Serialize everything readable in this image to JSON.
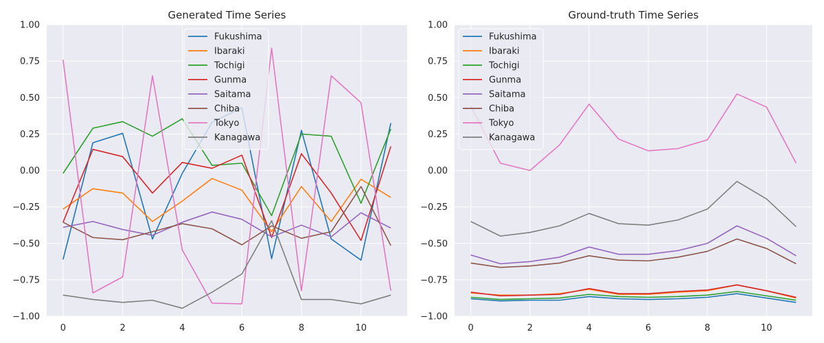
{
  "chart_data": [
    {
      "type": "line",
      "title": "Generated Time Series",
      "xlabel": "",
      "ylabel": "",
      "x": [
        0,
        1,
        2,
        3,
        4,
        5,
        6,
        7,
        8,
        9,
        10,
        11
      ],
      "xticks": [
        "0",
        "2",
        "4",
        "6",
        "8",
        "10"
      ],
      "xlim": [
        -0.55,
        11.55
      ],
      "ylim": [
        -1.0,
        1.0
      ],
      "yticks": [
        "−1.00",
        "−0.75",
        "−0.50",
        "−0.25",
        "0.00",
        "0.25",
        "0.50",
        "0.75",
        "1.00"
      ],
      "grid": true,
      "legend_position": "upper center",
      "series": [
        {
          "name": "Fukushima",
          "color": "#1f77b4",
          "values": [
            -0.61,
            0.19,
            0.255,
            -0.47,
            -0.02,
            0.33,
            0.43,
            -0.605,
            0.275,
            -0.47,
            -0.615,
            0.325
          ]
        },
        {
          "name": "Ibaraki",
          "color": "#ff7f0e",
          "values": [
            -0.265,
            -0.125,
            -0.155,
            -0.35,
            -0.21,
            -0.055,
            -0.135,
            -0.42,
            -0.11,
            -0.35,
            -0.06,
            -0.185
          ]
        },
        {
          "name": "Tochigi",
          "color": "#2ca02c",
          "values": [
            -0.02,
            0.29,
            0.335,
            0.235,
            0.355,
            0.035,
            0.05,
            -0.31,
            0.25,
            0.235,
            -0.225,
            0.285
          ]
        },
        {
          "name": "Gunma",
          "color": "#d62728",
          "values": [
            -0.355,
            0.145,
            0.095,
            -0.155,
            0.055,
            0.015,
            0.105,
            -0.46,
            0.115,
            -0.155,
            -0.48,
            0.165
          ]
        },
        {
          "name": "Saitama",
          "color": "#9467bd",
          "values": [
            -0.39,
            -0.35,
            -0.405,
            -0.445,
            -0.355,
            -0.285,
            -0.335,
            -0.455,
            -0.375,
            -0.455,
            -0.29,
            -0.395
          ]
        },
        {
          "name": "Chiba",
          "color": "#8c564b",
          "values": [
            -0.355,
            -0.46,
            -0.475,
            -0.42,
            -0.365,
            -0.4,
            -0.51,
            -0.38,
            -0.465,
            -0.42,
            -0.11,
            -0.515
          ]
        },
        {
          "name": "Tokyo",
          "color": "#e377c2",
          "values": [
            0.76,
            -0.84,
            -0.73,
            0.65,
            -0.545,
            -0.91,
            -0.915,
            0.84,
            -0.825,
            0.65,
            0.465,
            -0.825
          ]
        },
        {
          "name": "Kanagawa",
          "color": "#7f7f7f",
          "values": [
            -0.855,
            -0.885,
            -0.905,
            -0.89,
            -0.945,
            -0.835,
            -0.71,
            -0.345,
            -0.885,
            -0.885,
            -0.915,
            -0.855
          ]
        }
      ]
    },
    {
      "type": "line",
      "title": "Ground-truth Time Series",
      "xlabel": "",
      "ylabel": "",
      "x": [
        0,
        1,
        2,
        3,
        4,
        5,
        6,
        7,
        8,
        9,
        10,
        11
      ],
      "xticks": [
        "0",
        "2",
        "4",
        "6",
        "8",
        "10"
      ],
      "xlim": [
        -0.55,
        11.55
      ],
      "ylim": [
        -1.0,
        1.0
      ],
      "yticks": [
        "−1.00",
        "−0.75",
        "−0.50",
        "−0.25",
        "0.00",
        "0.25",
        "0.50",
        "0.75",
        "1.00"
      ],
      "grid": true,
      "legend_position": "upper left",
      "series": [
        {
          "name": "Fukushima",
          "color": "#1f77b4",
          "values": [
            -0.88,
            -0.895,
            -0.89,
            -0.89,
            -0.865,
            -0.88,
            -0.885,
            -0.88,
            -0.87,
            -0.845,
            -0.875,
            -0.905
          ]
        },
        {
          "name": "Ibaraki",
          "color": "#ff7f0e",
          "values": [
            -0.84,
            -0.855,
            -0.855,
            -0.845,
            -0.815,
            -0.85,
            -0.85,
            -0.835,
            -0.825,
            -0.785,
            -0.825,
            -0.875
          ]
        },
        {
          "name": "Tochigi",
          "color": "#2ca02c",
          "values": [
            -0.87,
            -0.885,
            -0.88,
            -0.875,
            -0.85,
            -0.865,
            -0.87,
            -0.865,
            -0.855,
            -0.83,
            -0.86,
            -0.89
          ]
        },
        {
          "name": "Gunma",
          "color": "#d62728",
          "values": [
            -0.835,
            -0.86,
            -0.855,
            -0.85,
            -0.81,
            -0.845,
            -0.845,
            -0.83,
            -0.82,
            -0.785,
            -0.825,
            -0.87
          ]
        },
        {
          "name": "Saitama",
          "color": "#9467bd",
          "values": [
            -0.58,
            -0.64,
            -0.625,
            -0.595,
            -0.525,
            -0.575,
            -0.575,
            -0.55,
            -0.5,
            -0.38,
            -0.465,
            -0.585
          ]
        },
        {
          "name": "Chiba",
          "color": "#8c564b",
          "values": [
            -0.635,
            -0.665,
            -0.655,
            -0.635,
            -0.585,
            -0.615,
            -0.62,
            -0.595,
            -0.555,
            -0.47,
            -0.535,
            -0.64
          ]
        },
        {
          "name": "Tokyo",
          "color": "#e377c2",
          "values": [
            0.44,
            0.05,
            0.0,
            0.175,
            0.455,
            0.215,
            0.135,
            0.15,
            0.21,
            0.525,
            0.435,
            0.05
          ]
        },
        {
          "name": "Kanagawa",
          "color": "#7f7f7f",
          "values": [
            -0.35,
            -0.45,
            -0.425,
            -0.38,
            -0.295,
            -0.365,
            -0.375,
            -0.34,
            -0.265,
            -0.075,
            -0.195,
            -0.385
          ]
        }
      ]
    }
  ]
}
